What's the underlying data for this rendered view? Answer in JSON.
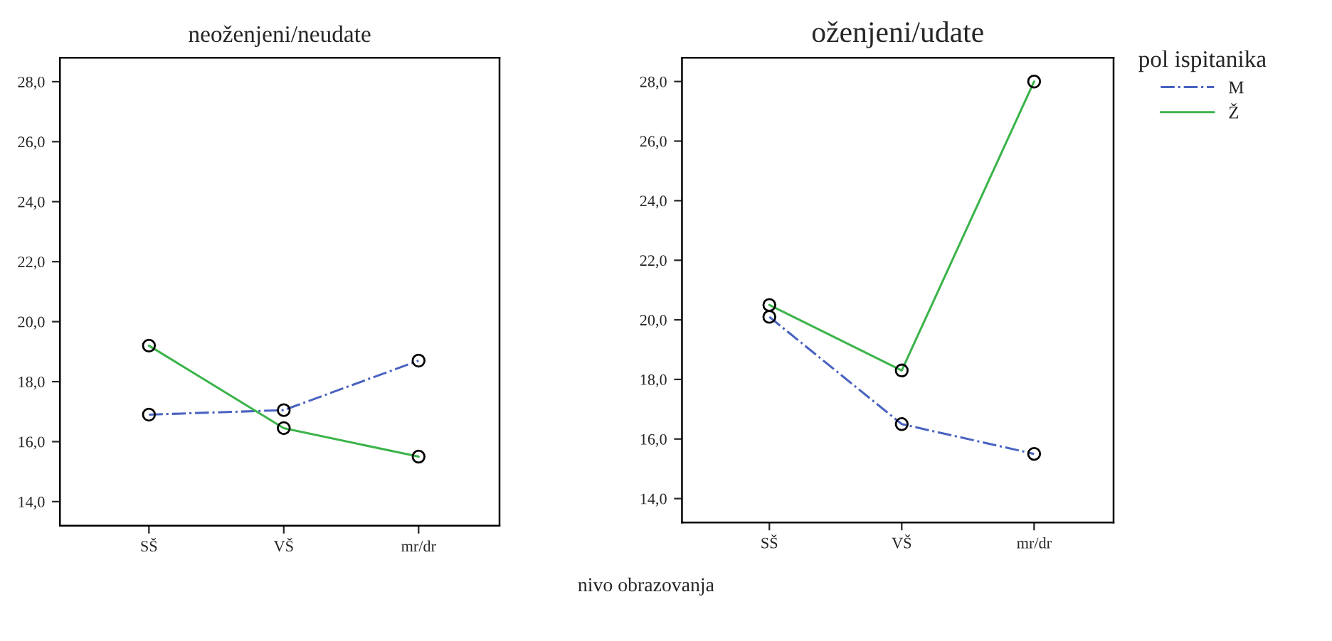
{
  "chart_data": [
    {
      "type": "line",
      "title": "neoženjeni/neudate",
      "categories": [
        "SŠ",
        "VŠ",
        "mr/dr"
      ],
      "ylim": [
        13.2,
        28.8
      ],
      "yticks": [
        {
          "value": 14,
          "label": "14,0"
        },
        {
          "value": 16,
          "label": "16,0"
        },
        {
          "value": 18,
          "label": "18,0"
        },
        {
          "value": 20,
          "label": "20,0"
        },
        {
          "value": 22,
          "label": "22,0"
        },
        {
          "value": 24,
          "label": "24,0"
        },
        {
          "value": 26,
          "label": "26,0"
        },
        {
          "value": 28,
          "label": "28,0"
        }
      ],
      "marker": "circle",
      "grid": false,
      "series": [
        {
          "color": "#4a63c0",
          "line_style": "dashdot",
          "values": [
            16.9,
            17.05,
            18.7
          ]
        },
        {
          "color": "#3cb44b",
          "line_style": "solid",
          "values": [
            19.2,
            16.45,
            15.5
          ]
        }
      ]
    },
    {
      "type": "line",
      "title": "oženjeni/udate",
      "xlabel": "nivo obrazovanja",
      "legend_title": "pol ispitanika",
      "categories": [
        "SŠ",
        "VŠ",
        "mr/dr"
      ],
      "ylim": [
        13.2,
        28.8
      ],
      "yticks": [
        {
          "value": 14,
          "label": "14,0"
        },
        {
          "value": 16,
          "label": "16,0"
        },
        {
          "value": 18,
          "label": "18,0"
        },
        {
          "value": 20,
          "label": "20,0"
        },
        {
          "value": 22,
          "label": "22,0"
        },
        {
          "value": 24,
          "label": "24,0"
        },
        {
          "value": 26,
          "label": "26,0"
        },
        {
          "value": 28,
          "label": "28,0"
        }
      ],
      "marker": "circle",
      "grid": false,
      "legend": "right",
      "series": [
        {
          "name": "M",
          "color": "#4a63c0",
          "line_style": "dashdot",
          "values": [
            20.1,
            16.5,
            15.5
          ]
        },
        {
          "name": "Ž",
          "color": "#3cb44b",
          "line_style": "solid",
          "values": [
            20.5,
            18.3,
            28.0
          ]
        }
      ]
    }
  ]
}
